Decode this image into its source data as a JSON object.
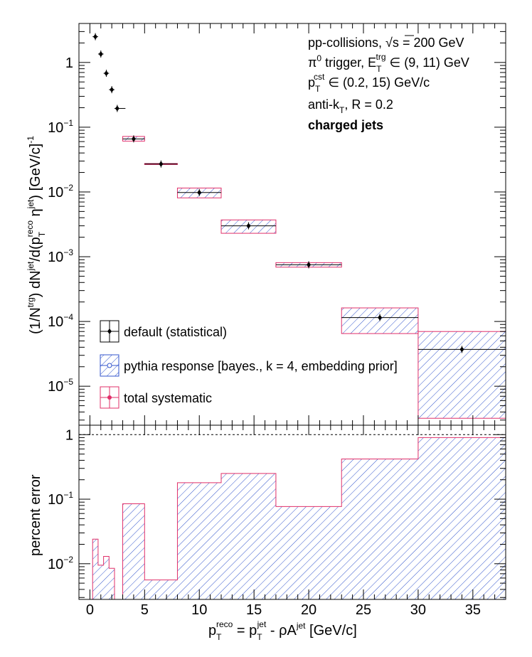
{
  "chart_data": [
    {
      "type": "scatter",
      "panel": "top",
      "yscale": "log",
      "xlim": [
        -1,
        38
      ],
      "ylim": [
        2.5e-06,
        4.0
      ],
      "grid": false,
      "ylabel": "(1/N^{trg}) dN^{jet}/d(p_T^{reco} η^{jet}) [GeV/c]^{-1}",
      "yticks": [
        {
          "v": 1,
          "m": "1",
          "e": ""
        },
        {
          "v": 0.1,
          "m": "10",
          "e": "−1"
        },
        {
          "v": 0.01,
          "m": "10",
          "e": "−2"
        },
        {
          "v": 0.001,
          "m": "10",
          "e": "−3"
        },
        {
          "v": 0.0001,
          "m": "10",
          "e": "−4"
        },
        {
          "v": 1e-05,
          "m": "10",
          "e": "−5"
        }
      ],
      "annotations": [
        "pp-collisions, √s = 200 GeV",
        "π⁰ trigger, E_T^{trg} ∈ (9, 11) GeV",
        "p_T^{cst} ∈ (0.2, 15) GeV/c",
        "anti-k_T, R = 0.2",
        "charged jets"
      ],
      "legend_position": "bottom-left",
      "series": [
        {
          "name": "default (statistical)",
          "color": "#000000",
          "points": [
            {
              "x": 0.5,
              "xlo": 0.25,
              "xhi": 0.75,
              "y": 2.5
            },
            {
              "x": 1.0,
              "xlo": 0.75,
              "xhi": 1.25,
              "y": 1.35
            },
            {
              "x": 1.5,
              "xlo": 1.25,
              "xhi": 1.75,
              "y": 0.68
            },
            {
              "x": 2.0,
              "xlo": 1.75,
              "xhi": 2.25,
              "y": 0.38
            },
            {
              "x": 2.5,
              "xlo": 2.25,
              "xhi": 3.25,
              "y": 0.195
            },
            {
              "x": 4.0,
              "xlo": 3.0,
              "xhi": 5.0,
              "y": 0.066
            },
            {
              "x": 6.5,
              "xlo": 5.0,
              "xhi": 8.0,
              "y": 0.027
            },
            {
              "x": 10.0,
              "xlo": 8.0,
              "xhi": 12.0,
              "y": 0.0098
            },
            {
              "x": 14.5,
              "xlo": 12.0,
              "xhi": 17.0,
              "y": 0.003
            },
            {
              "x": 20.0,
              "xlo": 17.0,
              "xhi": 23.0,
              "y": 0.00075
            },
            {
              "x": 26.5,
              "xlo": 23.0,
              "xhi": 30.0,
              "y": 0.000115
            },
            {
              "x": 34.0,
              "xlo": 30.0,
              "xhi": 38.0,
              "y": 3.7e-05
            }
          ]
        },
        {
          "name": "pythia response [bayes., k = 4, embedding prior]",
          "color": "#3355cc",
          "style": "hatched",
          "bins": [
            {
              "xlo": 3.0,
              "xhi": 5.0,
              "ylo": 0.061,
              "yhi": 0.072
            },
            {
              "xlo": 5.0,
              "xhi": 8.0,
              "ylo": 0.0265,
              "yhi": 0.0275
            },
            {
              "xlo": 8.0,
              "xhi": 12.0,
              "ylo": 0.0081,
              "yhi": 0.0115
            },
            {
              "xlo": 12.0,
              "xhi": 17.0,
              "ylo": 0.0023,
              "yhi": 0.0037
            },
            {
              "xlo": 17.0,
              "xhi": 23.0,
              "ylo": 0.00069,
              "yhi": 0.00081
            },
            {
              "xlo": 23.0,
              "xhi": 30.0,
              "ylo": 6.5e-05,
              "yhi": 0.000162
            },
            {
              "xlo": 30.0,
              "xhi": 38.0,
              "ylo": 3.2e-06,
              "yhi": 7e-05
            }
          ]
        },
        {
          "name": "total systematic",
          "color": "#e0306a",
          "style": "outline",
          "bins": [
            {
              "xlo": 3.0,
              "xhi": 5.0,
              "ylo": 0.061,
              "yhi": 0.072
            },
            {
              "xlo": 5.0,
              "xhi": 8.0,
              "ylo": 0.0265,
              "yhi": 0.0275
            },
            {
              "xlo": 8.0,
              "xhi": 12.0,
              "ylo": 0.0081,
              "yhi": 0.0115
            },
            {
              "xlo": 12.0,
              "xhi": 17.0,
              "ylo": 0.0023,
              "yhi": 0.0037
            },
            {
              "xlo": 17.0,
              "xhi": 23.0,
              "ylo": 0.00069,
              "yhi": 0.00081
            },
            {
              "xlo": 23.0,
              "xhi": 30.0,
              "ylo": 6.5e-05,
              "yhi": 0.000162
            },
            {
              "xlo": 30.0,
              "xhi": 38.0,
              "ylo": 3.2e-06,
              "yhi": 7e-05
            }
          ]
        }
      ]
    },
    {
      "type": "area",
      "panel": "bottom",
      "yscale": "log",
      "xlim": [
        -1,
        38
      ],
      "ylim": [
        0.0028,
        1.4
      ],
      "grid": false,
      "xlabel": "p_T^{reco} = p_T^{jet} - ρA^{jet} [GeV/c]",
      "ylabel": "percent error",
      "reference_line": 1,
      "xticks": [
        0,
        5,
        10,
        15,
        20,
        25,
        30,
        35
      ],
      "yticks": [
        {
          "v": 1,
          "m": "1",
          "e": ""
        },
        {
          "v": 0.1,
          "m": "10",
          "e": "−1"
        },
        {
          "v": 0.01,
          "m": "10",
          "e": "−2"
        }
      ],
      "series": [
        {
          "name": "total systematic",
          "color": "#e0306a",
          "hatch_color": "#3355cc",
          "bins": [
            {
              "xlo": 0.25,
              "xhi": 0.75,
              "y": 0.024
            },
            {
              "xlo": 0.75,
              "xhi": 1.25,
              "y": 0.0095
            },
            {
              "xlo": 1.25,
              "xhi": 1.75,
              "y": 0.013
            },
            {
              "xlo": 1.75,
              "xhi": 2.25,
              "y": 0.0085
            },
            {
              "xlo": 2.25,
              "xhi": 3.0,
              "y": 0.0028
            },
            {
              "xlo": 3.0,
              "xhi": 5.0,
              "y": 0.085
            },
            {
              "xlo": 5.0,
              "xhi": 8.0,
              "y": 0.0056
            },
            {
              "xlo": 8.0,
              "xhi": 12.0,
              "y": 0.18
            },
            {
              "xlo": 12.0,
              "xhi": 17.0,
              "y": 0.25
            },
            {
              "xlo": 17.0,
              "xhi": 23.0,
              "y": 0.077
            },
            {
              "xlo": 23.0,
              "xhi": 30.0,
              "y": 0.42
            },
            {
              "xlo": 30.0,
              "xhi": 38.0,
              "y": 0.9
            }
          ]
        }
      ]
    }
  ],
  "xlabel_parts": {
    "p": "p",
    "T": "T",
    "reco": "reco",
    "eq": " = p",
    "T2": "T",
    "jet": "jet",
    "rest": " - ρA",
    "jet2": "jet",
    "unit": " [GeV/c]"
  },
  "ylabel_top_parts": {
    "a": "(1/N",
    "trg": "trg",
    "b": ") dN",
    "jet": "jet",
    "c": "/d(p",
    "T": "T",
    "reco": "reco",
    "d": " η",
    "jet2": "jet",
    "e": ") [GeV/c]",
    "m1": "-1"
  },
  "ylabel_bottom": "percent error",
  "annotation_parts": {
    "l1a": "pp-collisions, ",
    "l1b": "√s",
    "l1c": " = 200 GeV",
    "l2a": "π",
    "l2sup": "0",
    "l2b": " trigger, E",
    "l2sub": "T",
    "l2sup2": "trg",
    "l2c": " ∈ (9, 11) GeV",
    "l3a": "p",
    "l3sub": "T",
    "l3sup": "cst",
    "l3b": " ∈ (0.2, 15) GeV/c",
    "l4a": "anti-k",
    "l4sub": "T",
    "l4b": ", R = 0.2",
    "l5": "charged jets"
  }
}
